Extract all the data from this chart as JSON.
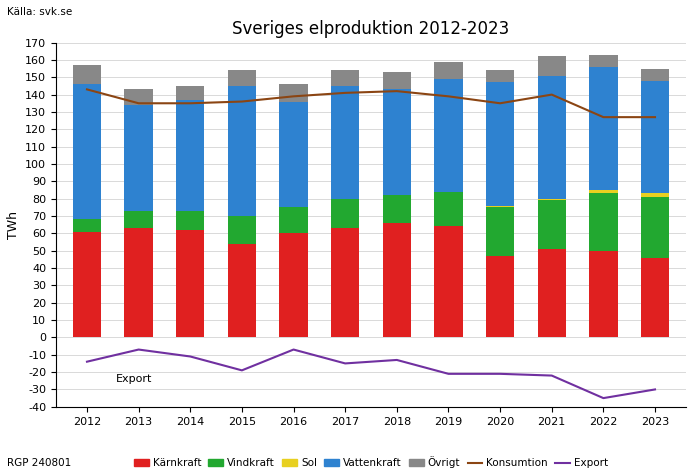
{
  "years": [
    2012,
    2013,
    2014,
    2015,
    2016,
    2017,
    2018,
    2019,
    2020,
    2021,
    2022,
    2023
  ],
  "kärnkraft": [
    61,
    63,
    62,
    54,
    60,
    63,
    66,
    64,
    47,
    51,
    50,
    46
  ],
  "vindkraft": [
    7,
    10,
    11,
    16,
    15,
    17,
    16,
    20,
    28,
    28,
    33,
    35
  ],
  "sol": [
    0,
    0,
    0,
    0,
    0,
    0,
    0,
    0,
    1,
    1,
    2,
    2
  ],
  "vattenkraft": [
    78,
    61,
    64,
    75,
    61,
    65,
    61,
    65,
    71,
    71,
    71,
    65
  ],
  "ovrigt": [
    11,
    9,
    8,
    9,
    10,
    9,
    10,
    10,
    7,
    11,
    7,
    7
  ],
  "konsumtion": [
    143,
    135,
    135,
    136,
    139,
    141,
    142,
    139,
    135,
    140,
    127,
    127
  ],
  "export": [
    -14,
    -7,
    -11,
    -19,
    -7,
    -15,
    -13,
    -21,
    -21,
    -22,
    -35,
    -30
  ],
  "bar_colors": {
    "karnkraft": "#e02020",
    "vindkraft": "#22a830",
    "sol": "#e8d020",
    "vattenkraft": "#2e82d0",
    "ovrigt": "#888888"
  },
  "konsumtion_color": "#8B4513",
  "export_color": "#7030a0",
  "title": "Sveriges elproduktion 2012-2023",
  "ylabel": "TWh",
  "source_label": "Källa: svk.se",
  "bottom_label": "RGP 240801",
  "export_label": "Export",
  "ylim": [
    -40,
    170
  ],
  "legend_labels": [
    "Kärnkraft",
    "Vindkraft",
    "Sol",
    "Vattenkraft",
    "Övrigt",
    "Konsumtion",
    "Export"
  ]
}
